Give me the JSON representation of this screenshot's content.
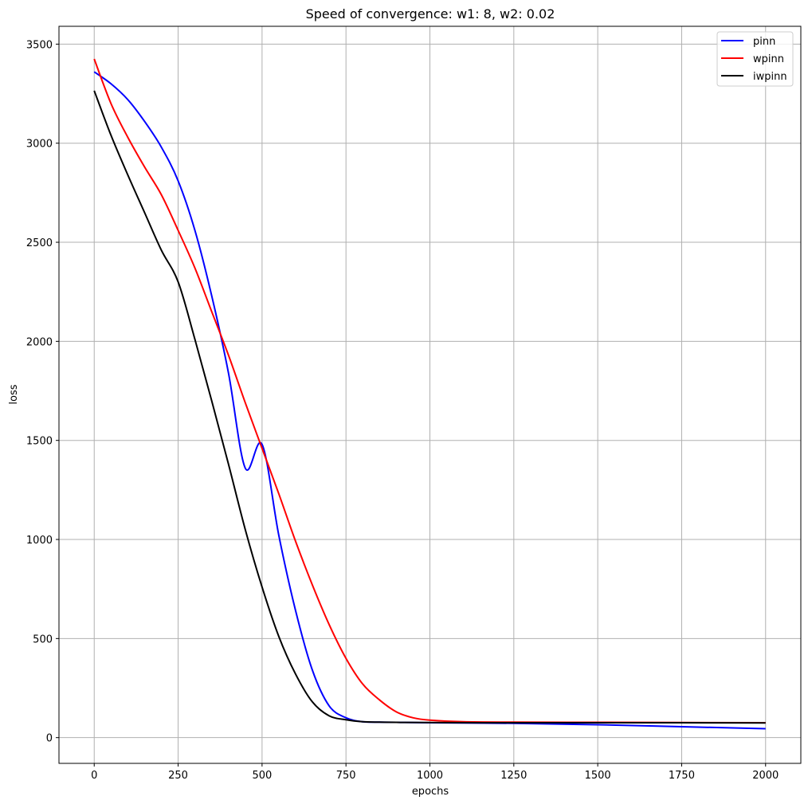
{
  "chart_data": {
    "type": "line",
    "title": "Speed of convergence: w1: 8, w2: 0.02",
    "xlabel": "epochs",
    "ylabel": "loss",
    "xlim": [
      -105,
      2105
    ],
    "ylim": [
      -130,
      3590
    ],
    "xticks": [
      0,
      250,
      500,
      750,
      1000,
      1250,
      1500,
      1750,
      2000
    ],
    "yticks": [
      0,
      500,
      1000,
      1500,
      2000,
      2500,
      3000,
      3500
    ],
    "grid": true,
    "legend_position": "top-right",
    "series": [
      {
        "name": "pinn",
        "color": "#0000ff",
        "x": [
          0,
          50,
          100,
          150,
          200,
          250,
          300,
          350,
          400,
          450,
          500,
          550,
          600,
          650,
          700,
          750,
          800,
          850,
          900,
          1000,
          1250,
          1500,
          1750,
          2000
        ],
        "y": [
          3360,
          3300,
          3220,
          3110,
          2980,
          2810,
          2560,
          2230,
          1840,
          1360,
          1480,
          1020,
          640,
          340,
          160,
          100,
          80,
          78,
          77,
          75,
          72,
          65,
          55,
          45
        ]
      },
      {
        "name": "wpinn",
        "color": "#ff0000",
        "x": [
          0,
          50,
          100,
          150,
          200,
          250,
          300,
          350,
          400,
          450,
          500,
          550,
          600,
          650,
          700,
          750,
          800,
          850,
          900,
          950,
          1000,
          1100,
          1250,
          1500,
          1750,
          2000
        ],
        "y": [
          3425,
          3200,
          3030,
          2880,
          2740,
          2560,
          2370,
          2150,
          1930,
          1690,
          1460,
          1230,
          990,
          770,
          570,
          400,
          270,
          190,
          130,
          100,
          88,
          80,
          78,
          77,
          76,
          75
        ]
      },
      {
        "name": "iwpinn",
        "color": "#000000",
        "x": [
          0,
          50,
          100,
          150,
          200,
          250,
          300,
          350,
          400,
          450,
          500,
          550,
          600,
          650,
          700,
          750,
          800,
          850,
          900,
          1000,
          1250,
          1500,
          1750,
          2000
        ],
        "y": [
          3265,
          3040,
          2840,
          2650,
          2460,
          2300,
          2010,
          1700,
          1380,
          1050,
          760,
          510,
          320,
          180,
          110,
          90,
          80,
          78,
          77,
          76,
          75,
          75,
          75,
          74
        ]
      }
    ]
  }
}
